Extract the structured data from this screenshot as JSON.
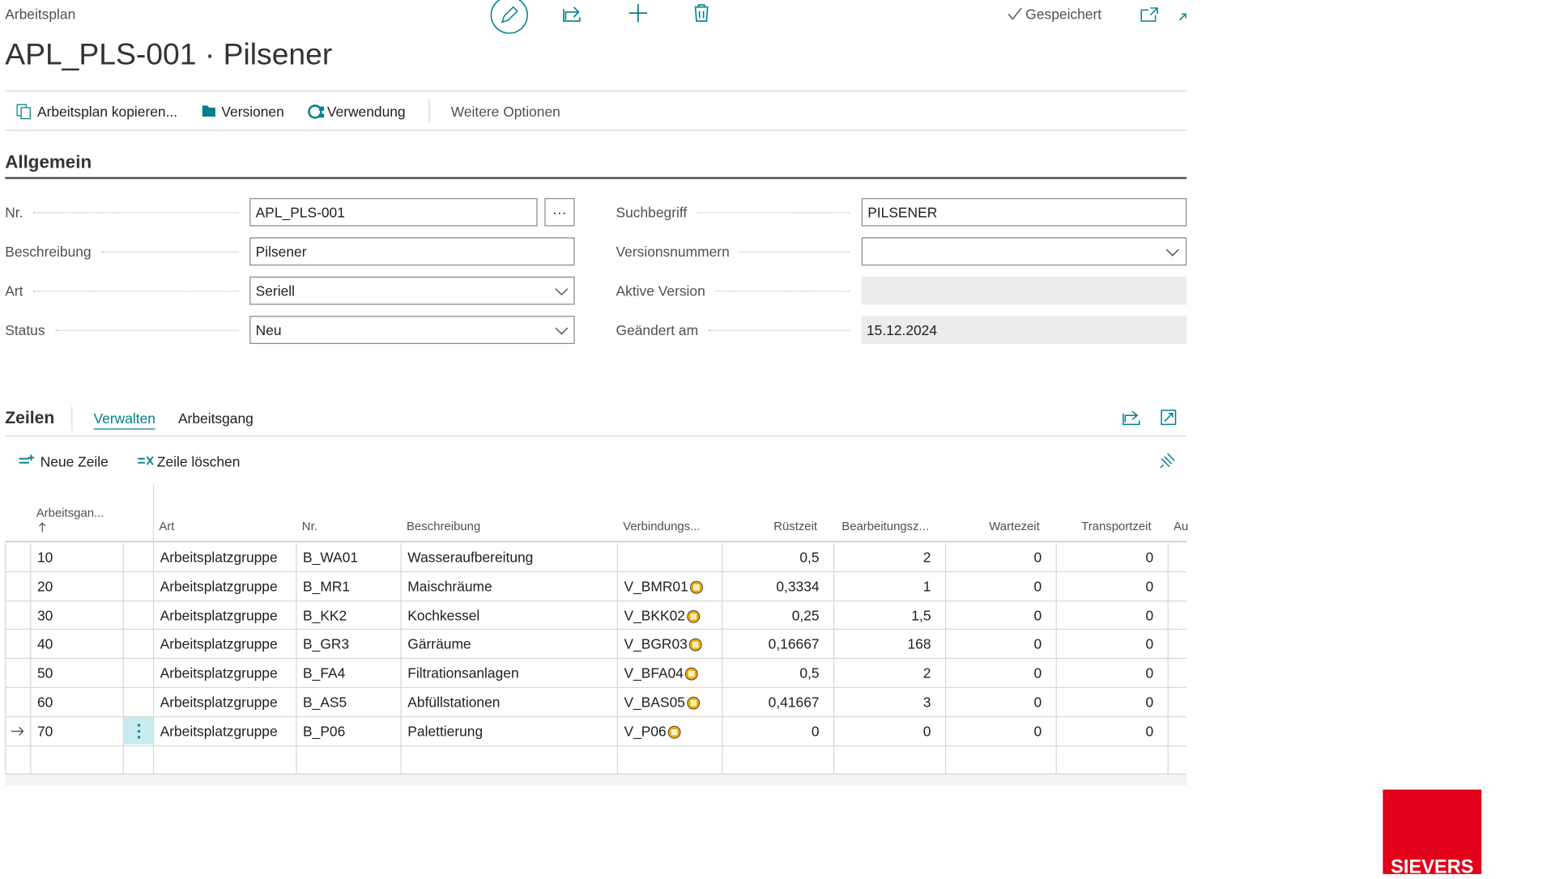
{
  "header": {
    "breadcrumb": "Arbeitsplan",
    "title": "APL_PLS-001 · Pilsener",
    "status": "Gespeichert"
  },
  "actions": [
    "Arbeitsplan kopieren...",
    "Versionen",
    "Verwendung",
    "Weitere Optionen"
  ],
  "general": {
    "title": "Allgemein",
    "left": [
      {
        "label": "Nr.",
        "value": "APL_PLS-001"
      },
      {
        "label": "Beschreibung",
        "value": "Pilsener"
      },
      {
        "label": "Art",
        "value": "Seriell"
      },
      {
        "label": "Status",
        "value": "Neu"
      }
    ],
    "right": [
      {
        "label": "Suchbegriff",
        "value": "PILSENER"
      },
      {
        "label": "Versionsnummern",
        "value": ""
      },
      {
        "label": "Aktive Version",
        "value": ""
      },
      {
        "label": "Geändert am",
        "value": "15.12.2024"
      }
    ]
  },
  "lines": {
    "title": "Zeilen",
    "tabs": [
      "Verwalten",
      "Arbeitsgang"
    ],
    "actions": [
      "Neue Zeile",
      "Zeile löschen"
    ],
    "columns": [
      "Arbeitsgan...",
      "Art",
      "Nr.",
      "Beschreibung",
      "Verbindungs...",
      "Rüstzeit",
      "Bearbeitungsz...",
      "Wartezeit",
      "Transportzeit",
      "Au"
    ],
    "rows": [
      [
        "10",
        "Arbeitsplatzgruppe",
        "B_WA01",
        "Wasseraufbereitung",
        "",
        "0,5",
        "2",
        "0",
        "0"
      ],
      [
        "20",
        "Arbeitsplatzgruppe",
        "B_MR1",
        "Maischräume",
        "V_BMR01",
        "0,3334",
        "1",
        "0",
        "0"
      ],
      [
        "30",
        "Arbeitsplatzgruppe",
        "B_KK2",
        "Kochkessel",
        "V_BKK02",
        "0,25",
        "1,5",
        "0",
        "0"
      ],
      [
        "40",
        "Arbeitsplatzgruppe",
        "B_GR3",
        "Gärräume",
        "V_BGR03",
        "0,16667",
        "168",
        "0",
        "0"
      ],
      [
        "50",
        "Arbeitsplatzgruppe",
        "B_FA4",
        "Filtrationsanlagen",
        "V_BFA04",
        "0,5",
        "2",
        "0",
        "0"
      ],
      [
        "60",
        "Arbeitsplatzgruppe",
        "B_AS5",
        "Abfüllstationen",
        "V_BAS05",
        "0,41667",
        "3",
        "0",
        "0"
      ],
      [
        "70",
        "Arbeitsplatzgruppe",
        "B_P06",
        "Palettierung",
        "V_P06",
        "0",
        "0",
        "0",
        "0"
      ]
    ]
  },
  "logo": "SIEVERS"
}
